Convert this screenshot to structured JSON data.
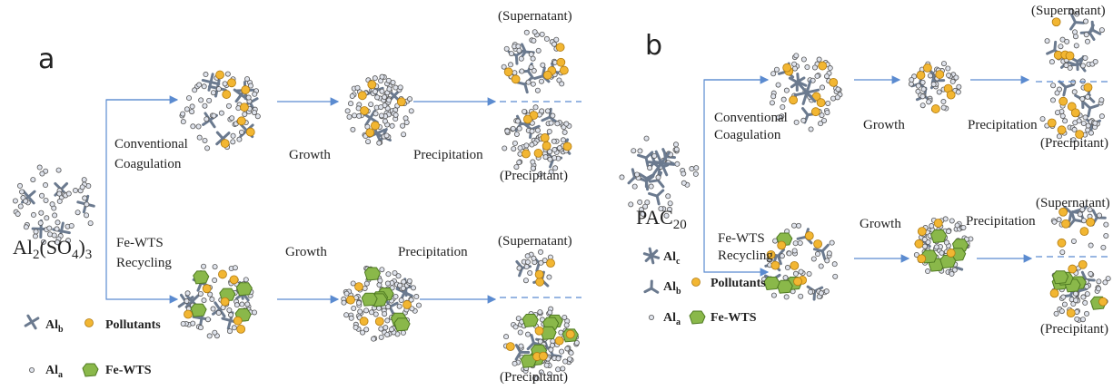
{
  "panel_a": {
    "label": "a",
    "formula": [
      {
        "text": "Al"
      },
      {
        "sub": "2"
      },
      {
        "text": "(SO"
      },
      {
        "sub": "4"
      },
      {
        "text": ")"
      },
      {
        "sub": "3"
      }
    ],
    "top": {
      "step1": [
        "Conventional",
        "Coagulation"
      ],
      "step2": "Growth",
      "step3": "Precipitation",
      "supernatant": "(Supernatant)",
      "precipitant": "(Precipitant)"
    },
    "bottom": {
      "step1": [
        "Fe-WTS",
        "Recycling"
      ],
      "step2": "Growth",
      "step3": "Precipitation",
      "supernatant": "(Supernatant)",
      "precipitant": "(Precipitant)"
    },
    "legend": {
      "al_b": {
        "base": "Al",
        "sub": "b"
      },
      "pollutants": "Pollutants",
      "al_a": {
        "base": "Al",
        "sub": "a"
      },
      "fe_wts": "Fe-WTS"
    }
  },
  "panel_b": {
    "label": "b",
    "formula": [
      {
        "text": "PAC"
      },
      {
        "sub": "20"
      }
    ],
    "top": {
      "step1": [
        "Conventional",
        "Coagulation"
      ],
      "step2": "Growth",
      "step3": "Precipitation",
      "supernatant": "(Supernatant)",
      "precipitant": "(Precipitant)"
    },
    "bottom": {
      "step1": [
        "Fe-WTS",
        "Recycling"
      ],
      "step2": "Growth",
      "step3": "Precipitation",
      "supernatant": "(Supernatant)",
      "precipitant": "(Precipitant)"
    },
    "legend": {
      "al_c": {
        "base": "Al",
        "sub": "c"
      },
      "al_b": {
        "base": "Al",
        "sub": "b"
      },
      "pollutants": "Pollutants",
      "al_a": {
        "base": "Al",
        "sub": "a"
      },
      "fe_wts": "Fe-WTS"
    }
  }
}
